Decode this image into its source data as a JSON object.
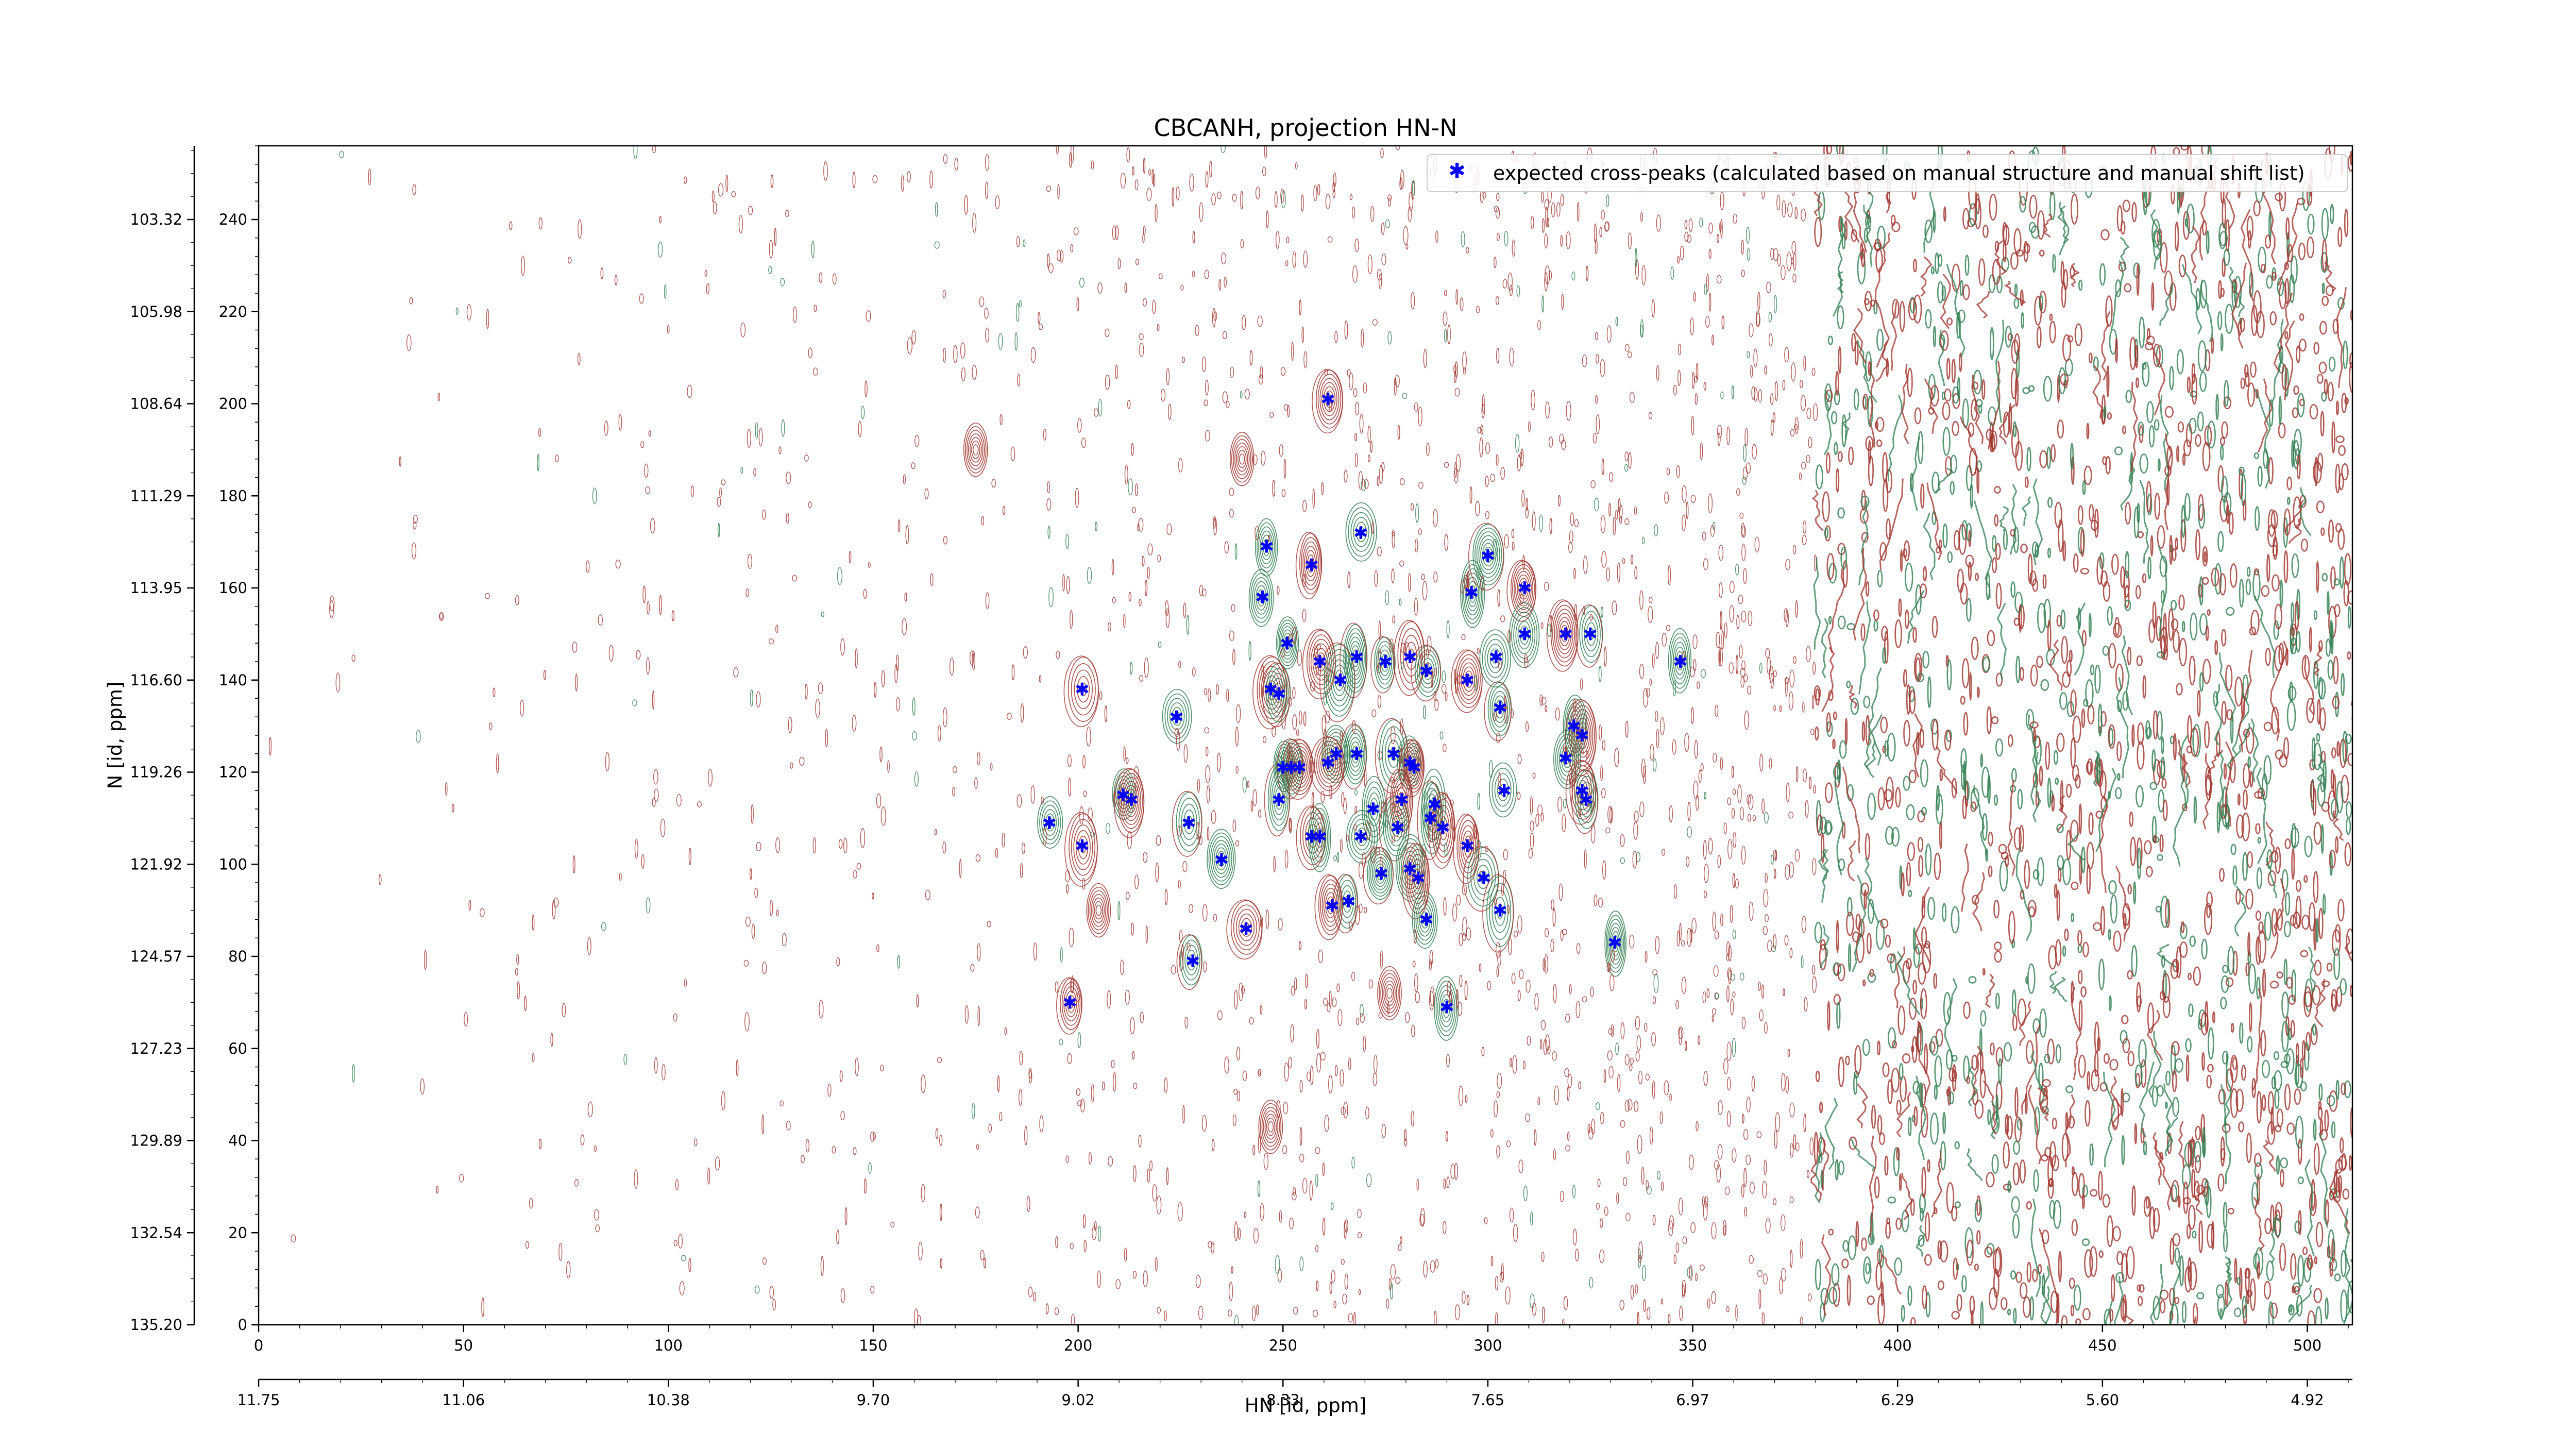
{
  "chart_data": {
    "type": "scatter",
    "title": "CBCANH, projection HN-N",
    "xlabel": "HN [id, ppm]",
    "ylabel": "N [id, ppm]",
    "xlim": [
      0,
      511
    ],
    "ylim": [
      0,
      256
    ],
    "x_ticks": [
      0,
      50,
      100,
      150,
      200,
      250,
      300,
      350,
      400,
      450,
      500
    ],
    "y_ticks": [
      0,
      20,
      40,
      60,
      80,
      100,
      120,
      140,
      160,
      180,
      200,
      220,
      240
    ],
    "hn_ppm_ticks": [
      {
        "x": 0,
        "label": "11.75"
      },
      {
        "x": 50,
        "label": "11.06"
      },
      {
        "x": 100,
        "label": "10.38"
      },
      {
        "x": 150,
        "label": "9.70"
      },
      {
        "x": 200,
        "label": "9.02"
      },
      {
        "x": 250,
        "label": "8.33"
      },
      {
        "x": 300,
        "label": "7.65"
      },
      {
        "x": 350,
        "label": "6.97"
      },
      {
        "x": 400,
        "label": "6.29"
      },
      {
        "x": 450,
        "label": "5.60"
      },
      {
        "x": 500,
        "label": "4.92"
      }
    ],
    "n_ppm_ticks": [
      {
        "y": 0,
        "label": "135.20"
      },
      {
        "y": 20,
        "label": "132.54"
      },
      {
        "y": 40,
        "label": "129.89"
      },
      {
        "y": 60,
        "label": "127.23"
      },
      {
        "y": 80,
        "label": "124.57"
      },
      {
        "y": 100,
        "label": "121.92"
      },
      {
        "y": 120,
        "label": "119.26"
      },
      {
        "y": 140,
        "label": "116.60"
      },
      {
        "y": 160,
        "label": "113.95"
      },
      {
        "y": 180,
        "label": "111.29"
      },
      {
        "y": 200,
        "label": "108.64"
      },
      {
        "y": 220,
        "label": "105.98"
      },
      {
        "y": 240,
        "label": "103.32"
      }
    ],
    "legend": {
      "placement": "top-right",
      "label": "expected cross-peaks (calculated based on manual structure and manual shift list)"
    },
    "colors": {
      "marker": "#0000ff",
      "contour_positive": "#2e7d4f",
      "contour_negative": "#a0322a"
    },
    "grid": false,
    "series": [
      {
        "name": "expected cross-peaks (calculated based on manual structure and manual shift list)",
        "points": [
          [
            261,
            201
          ],
          [
            269,
            172
          ],
          [
            246,
            169
          ],
          [
            257,
            165
          ],
          [
            300,
            167
          ],
          [
            296,
            159
          ],
          [
            309,
            160
          ],
          [
            245,
            158
          ],
          [
            251,
            148
          ],
          [
            259,
            144
          ],
          [
            275,
            144
          ],
          [
            268,
            145
          ],
          [
            281,
            145
          ],
          [
            285,
            142
          ],
          [
            264,
            140
          ],
          [
            295,
            140
          ],
          [
            302,
            145
          ],
          [
            309,
            150
          ],
          [
            319,
            150
          ],
          [
            325,
            150
          ],
          [
            347,
            144
          ],
          [
            247,
            138
          ],
          [
            249,
            137
          ],
          [
            303,
            134
          ],
          [
            201,
            138
          ],
          [
            224,
            132
          ],
          [
            321,
            130
          ],
          [
            323,
            128
          ],
          [
            263,
            124
          ],
          [
            268,
            124
          ],
          [
            261,
            122
          ],
          [
            250,
            121
          ],
          [
            252,
            121
          ],
          [
            254,
            121
          ],
          [
            277,
            124
          ],
          [
            281,
            122
          ],
          [
            282,
            121
          ],
          [
            319,
            123
          ],
          [
            304,
            116
          ],
          [
            323,
            116
          ],
          [
            324,
            114
          ],
          [
            211,
            115
          ],
          [
            213,
            114
          ],
          [
            249,
            114
          ],
          [
            272,
            112
          ],
          [
            279,
            114
          ],
          [
            287,
            113
          ],
          [
            286,
            110
          ],
          [
            289,
            108
          ],
          [
            278,
            108
          ],
          [
            269,
            106
          ],
          [
            257,
            106
          ],
          [
            259,
            106
          ],
          [
            193,
            109
          ],
          [
            201,
            104
          ],
          [
            227,
            109
          ],
          [
            235,
            101
          ],
          [
            295,
            104
          ],
          [
            274,
            98
          ],
          [
            281,
            99
          ],
          [
            283,
            97
          ],
          [
            299,
            97
          ],
          [
            266,
            92
          ],
          [
            262,
            91
          ],
          [
            303,
            90
          ],
          [
            285,
            88
          ],
          [
            241,
            86
          ],
          [
            228,
            79
          ],
          [
            331,
            83
          ],
          [
            198,
            70
          ],
          [
            290,
            69
          ]
        ]
      }
    ]
  }
}
